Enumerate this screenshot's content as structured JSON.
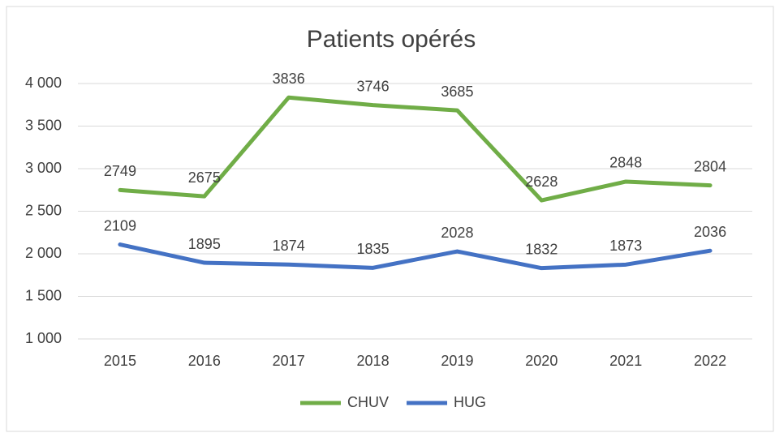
{
  "chart_data": {
    "type": "line",
    "title": "Patients opérés",
    "categories": [
      "2015",
      "2016",
      "2017",
      "2018",
      "2019",
      "2020",
      "2021",
      "2022"
    ],
    "series": [
      {
        "name": "CHUV",
        "color": "#70ad47",
        "values": [
          2749,
          2675,
          3836,
          3746,
          3685,
          2628,
          2848,
          2804
        ]
      },
      {
        "name": "HUG",
        "color": "#4472c4",
        "values": [
          2109,
          1895,
          1874,
          1835,
          2028,
          1832,
          1873,
          2036
        ]
      }
    ],
    "ylim": [
      1000,
      4000
    ],
    "yticks": [
      {
        "value": 1000,
        "label": "1 000"
      },
      {
        "value": 1500,
        "label": "1 500"
      },
      {
        "value": 2000,
        "label": "2 000"
      },
      {
        "value": 2500,
        "label": "2 500"
      },
      {
        "value": 3000,
        "label": "3 000"
      },
      {
        "value": 3500,
        "label": "3 500"
      },
      {
        "value": 4000,
        "label": "4 000"
      }
    ],
    "grid": true,
    "legend": "bottom"
  }
}
